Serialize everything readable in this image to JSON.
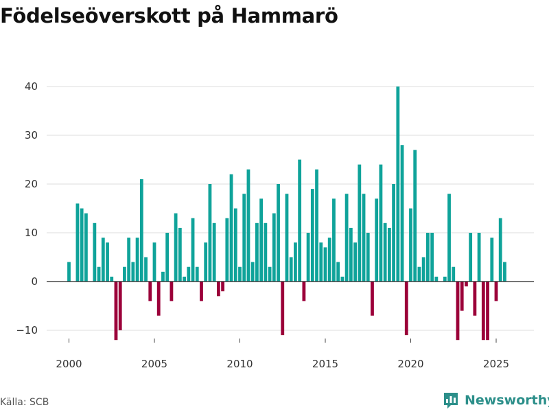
{
  "title": "Födelseöverskott på Hammarö",
  "source": "Källa: SCB",
  "brand": "Newsworthy",
  "colors": {
    "positive": "#0fa39a",
    "negative": "#9b0039",
    "brand": "#2c8f8a"
  },
  "chart_data": {
    "type": "bar",
    "title": "Födelseöverskott på Hammarö",
    "xlabel": "",
    "ylabel": "",
    "ylim": [
      -13,
      40
    ],
    "yticks": [
      -10,
      0,
      10,
      20,
      30,
      40
    ],
    "ytick_labels": [
      "−10",
      "0",
      "10",
      "20",
      "30",
      "40"
    ],
    "xticks": [
      2000,
      2005,
      2010,
      2015,
      2020,
      2025
    ],
    "xtick_labels": [
      "2000",
      "2005",
      "2010",
      "2015",
      "2020",
      "2025"
    ],
    "x_start": 2000.0,
    "x_step": 0.25,
    "series": [
      {
        "name": "Födelseöverskott",
        "values": [
          4,
          0,
          16,
          15,
          14,
          0,
          12,
          3,
          9,
          8,
          1,
          -12,
          -10,
          3,
          9,
          4,
          9,
          21,
          5,
          -4,
          8,
          -7,
          2,
          10,
          -4,
          14,
          11,
          1,
          3,
          13,
          3,
          -4,
          8,
          20,
          12,
          -3,
          -2,
          13,
          22,
          15,
          3,
          18,
          23,
          4,
          12,
          17,
          12,
          3,
          14,
          20,
          -11,
          18,
          5,
          8,
          25,
          -4,
          10,
          19,
          23,
          8,
          7,
          9,
          17,
          4,
          1,
          18,
          11,
          8,
          24,
          18,
          10,
          -7,
          17,
          24,
          12,
          11,
          20,
          40,
          28,
          -11,
          15,
          27,
          3,
          5,
          10,
          10,
          1,
          0,
          1,
          18,
          3,
          -12,
          -6,
          -1,
          10,
          -7,
          10,
          -12,
          -12,
          9,
          -4,
          13,
          4
        ]
      }
    ]
  }
}
